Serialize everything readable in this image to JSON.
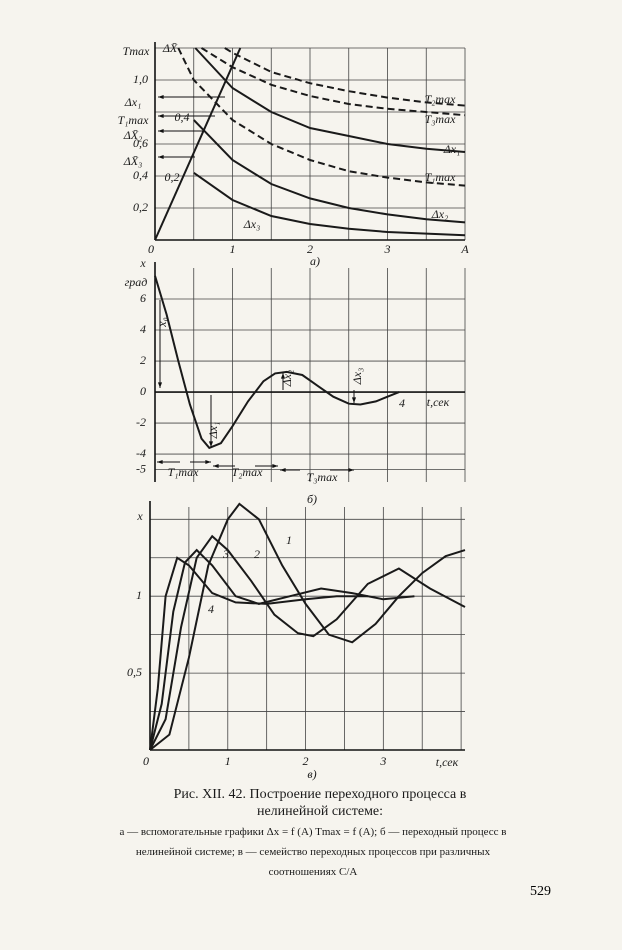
{
  "chart_data": [
    {
      "type": "line",
      "title": "а)",
      "xlim": [
        0,
        4
      ],
      "ylim": [
        0,
        1.2
      ],
      "xticks": [
        0,
        1,
        2,
        3,
        {
          "value": 4,
          "label": "A"
        }
      ],
      "yticks": [
        {
          "value": 0.2,
          "label": "0,2"
        },
        {
          "value": 0.4,
          "label": "0,4"
        },
        {
          "value": 0.6,
          "label": "0,6"
        },
        {
          "value": 1.0,
          "label": "1,0"
        }
      ],
      "xgrid": [
        0.5,
        1,
        1.5,
        2,
        2.5,
        3,
        3.5,
        4
      ],
      "ygrid": [
        0.2,
        0.4,
        0.6,
        0.8,
        1.0,
        1.2
      ],
      "annotations": [
        "Tmax",
        "ΔX̄",
        "Δx₁",
        "T₁max",
        "ΔX̄₂",
        "ΔX̄₃",
        "0,4",
        "0,2"
      ],
      "series": [
        {
          "x": [
            0,
            1.1
          ],
          "values": [
            0,
            1.2
          ],
          "color": "#1a1a1a"
        },
        {
          "name": "Δx₁",
          "color": "#1a1a1a",
          "x": [
            0.52,
            1,
            1.5,
            2,
            2.5,
            3,
            3.5,
            4
          ],
          "values": [
            1.2,
            0.95,
            0.8,
            0.7,
            0.65,
            0.6,
            0.57,
            0.55
          ]
        },
        {
          "name": "T₂max",
          "color": "#1a1a1a",
          "dashed": true,
          "x": [
            0.9,
            1,
            1.5,
            2,
            2.5,
            3,
            3.5,
            4
          ],
          "values": [
            1.2,
            1.17,
            1.05,
            0.98,
            0.93,
            0.89,
            0.86,
            0.84
          ]
        },
        {
          "name": "T₃max",
          "color": "#1a1a1a",
          "dashed": true,
          "x": [
            0.6,
            1,
            1.5,
            2,
            2.5,
            3,
            3.5,
            4
          ],
          "values": [
            1.2,
            1.08,
            0.97,
            0.9,
            0.85,
            0.82,
            0.8,
            0.78
          ]
        },
        {
          "name": "T₁max",
          "color": "#1a1a1a",
          "dashed": true,
          "x": [
            0.3,
            0.5,
            1,
            1.5,
            2,
            2.5,
            3,
            3.5,
            4
          ],
          "values": [
            1.2,
            1.0,
            0.75,
            0.6,
            0.5,
            0.43,
            0.39,
            0.36,
            0.34
          ]
        },
        {
          "name": "Δx₂",
          "color": "#1a1a1a",
          "x": [
            0.5,
            1,
            1.5,
            2,
            2.5,
            3,
            3.5,
            4
          ],
          "values": [
            0.75,
            0.5,
            0.35,
            0.26,
            0.2,
            0.16,
            0.13,
            0.11
          ]
        },
        {
          "name": "Δx₃",
          "color": "#1a1a1a",
          "x": [
            0.5,
            1,
            1.5,
            2,
            2.5,
            3,
            3.5,
            4
          ],
          "values": [
            0.42,
            0.25,
            0.15,
            0.1,
            0.07,
            0.05,
            0.04,
            0.03
          ]
        }
      ]
    },
    {
      "type": "line",
      "title": "б)",
      "xlim": [
        0,
        8
      ],
      "ylim": [
        -5.8,
        8
      ],
      "yticks": [
        6,
        4,
        2,
        0,
        -2,
        -4,
        -5
      ],
      "xgrid": [
        1,
        2,
        3,
        4,
        5,
        6,
        7,
        8
      ],
      "ygrid": [
        6,
        4,
        2,
        0,
        -2,
        -4,
        -5
      ],
      "annotations": [
        "x",
        "град",
        "x₀",
        "Δx₁",
        "Δx₂",
        "Δx₃",
        "t,сек",
        "4",
        "T₁max",
        "T₂max",
        "T₃max"
      ],
      "series": [
        {
          "color": "#1a1a1a",
          "x": [
            0,
            0.3,
            0.6,
            0.9,
            1.2,
            1.4,
            1.7,
            2.0,
            2.4,
            2.8,
            3.1,
            3.4,
            3.8,
            4.2,
            4.6,
            5.0,
            5.3,
            5.7,
            6.0,
            6.3
          ],
          "values": [
            7.5,
            5,
            2,
            -0.8,
            -3,
            -3.6,
            -3.3,
            -2.2,
            -0.6,
            0.7,
            1.2,
            1.3,
            1.1,
            0.4,
            -0.3,
            -0.75,
            -0.8,
            -0.6,
            -0.3,
            0
          ]
        }
      ]
    },
    {
      "type": "line",
      "title": "в)",
      "xlim": [
        0,
        4.05
      ],
      "ylim": [
        0,
        1.58
      ],
      "xticks": [
        0,
        1,
        2,
        3
      ],
      "yticks": [
        {
          "value": 0.5,
          "label": "0,5"
        },
        1
      ],
      "xgrid": [
        0.5,
        1,
        1.5,
        2,
        2.5,
        3,
        3.5,
        4
      ],
      "ygrid": [
        0.25,
        0.5,
        0.75,
        1,
        1.25,
        1.5
      ],
      "annotations": [
        "x",
        "t,сек"
      ],
      "series": [
        {
          "name": "1",
          "color": "#1a1a1a",
          "x": [
            0,
            0.25,
            0.5,
            0.75,
            1,
            1.15,
            1.4,
            1.7,
            2,
            2.3,
            2.6,
            2.9,
            3.2,
            3.5,
            3.8,
            4.05
          ],
          "values": [
            0,
            0.1,
            0.6,
            1.2,
            1.5,
            1.6,
            1.5,
            1.2,
            0.95,
            0.75,
            0.7,
            0.82,
            1.0,
            1.15,
            1.26,
            1.3
          ]
        },
        {
          "name": "2",
          "color": "#1a1a1a",
          "x": [
            0,
            0.2,
            0.4,
            0.6,
            0.8,
            1,
            1.3,
            1.6,
            1.9,
            2.1,
            2.4,
            2.8,
            3.2,
            3.6,
            4.05
          ],
          "values": [
            0,
            0.2,
            0.8,
            1.25,
            1.39,
            1.3,
            1.1,
            0.88,
            0.76,
            0.74,
            0.85,
            1.08,
            1.18,
            1.05,
            0.93
          ]
        },
        {
          "name": "3",
          "color": "#1a1a1a",
          "x": [
            0,
            0.15,
            0.3,
            0.45,
            0.6,
            0.8,
            1.1,
            1.4,
            1.8,
            2.2,
            2.6,
            3,
            3.4
          ],
          "values": [
            0,
            0.3,
            0.9,
            1.22,
            1.3,
            1.2,
            1.0,
            0.95,
            1.0,
            1.05,
            1.02,
            0.98,
            1.0
          ]
        },
        {
          "name": "4",
          "color": "#1a1a1a",
          "x": [
            0,
            0.1,
            0.2,
            0.35,
            0.5,
            0.8,
            1.1,
            1.5,
            2,
            2.4,
            2.8
          ],
          "values": [
            0,
            0.4,
            1.0,
            1.25,
            1.2,
            1.02,
            0.96,
            0.95,
            0.98,
            1.0,
            1.0
          ]
        }
      ]
    }
  ],
  "caption": {
    "title": "Рис. XII. 42. Построение переходного процесса в нелинейной системе:",
    "description": "а — вспомогательные графики Δx = f (A)  Tmax = f (A); б — переходный процесс в нелинейной системе; в — семейство переходных процессов при различных соотношениях C/A"
  },
  "page_number": "529"
}
